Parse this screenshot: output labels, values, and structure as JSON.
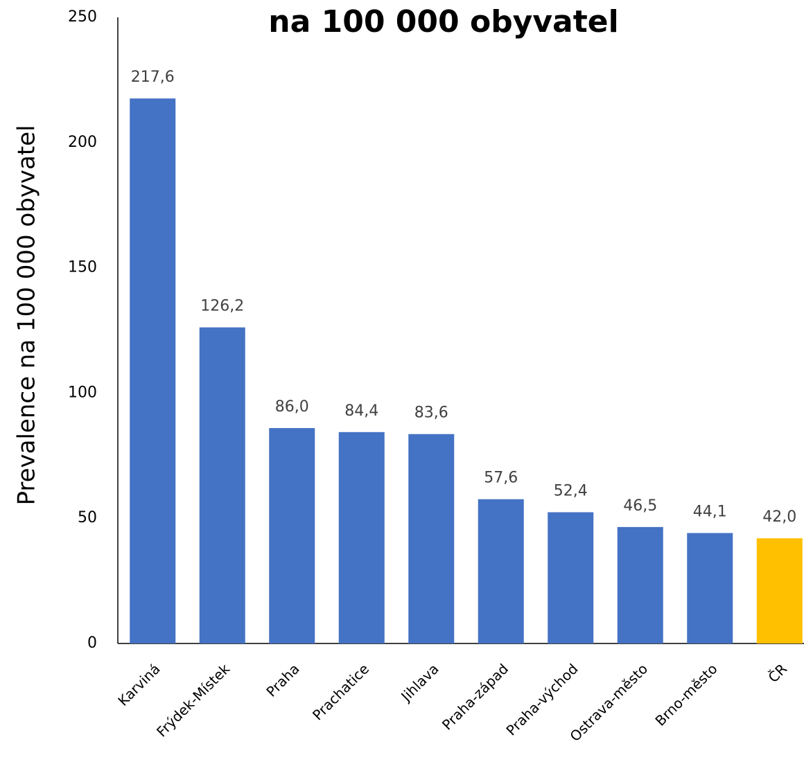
{
  "chart_data": {
    "type": "bar",
    "title": "na 100 000 obyvatel",
    "y_label": "Prevalence na 100 000 obyvatel",
    "categories": [
      "Karviná",
      "Frýdek-Místek",
      "Praha",
      "Prachatice",
      "Jihlava",
      "Praha-západ",
      "Praha-východ",
      "Ostrava-město",
      "Brno-město",
      "ČR"
    ],
    "values": [
      217.6,
      126.2,
      86.0,
      84.4,
      83.6,
      57.6,
      52.4,
      46.5,
      44.1,
      42.0
    ],
    "value_labels": [
      "217,6",
      "126,2",
      "86,0",
      "84,4",
      "83,6",
      "57,6",
      "52,4",
      "46,5",
      "44,1",
      "42,0"
    ],
    "colors": [
      "#4472c4",
      "#4472c4",
      "#4472c4",
      "#4472c4",
      "#4472c4",
      "#4472c4",
      "#4472c4",
      "#4472c4",
      "#4472c4",
      "#ffc000"
    ],
    "ylim": [
      0,
      250
    ],
    "yticks": [
      0,
      50,
      100,
      150,
      200,
      250
    ],
    "grid": false
  }
}
